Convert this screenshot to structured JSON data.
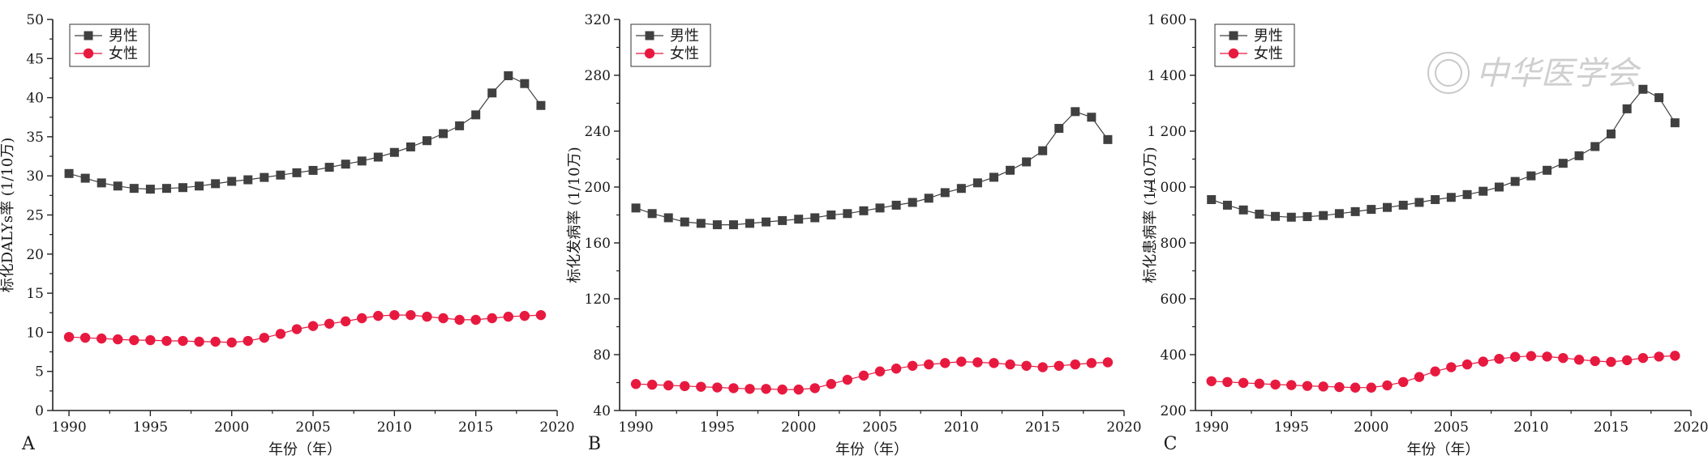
{
  "colors": {
    "male": "#404040",
    "female": "#e8193f",
    "axis": "#222222"
  },
  "watermark_text": "中华医学会",
  "chart_data": [
    {
      "panel": "A",
      "type": "line",
      "xlabel": "年份（年）",
      "ylabel": "标化DALYs率 (1/10万)",
      "xlim": [
        1989,
        2020
      ],
      "ylim": [
        0,
        50
      ],
      "xticks": [
        1990,
        1995,
        2000,
        2005,
        2010,
        2015,
        2020
      ],
      "yticks": [
        0,
        5,
        10,
        15,
        20,
        25,
        30,
        35,
        40,
        45,
        50
      ],
      "ytick_labels": [
        "0",
        "5",
        "10",
        "15",
        "20",
        "25",
        "30",
        "35",
        "40",
        "45",
        "50"
      ],
      "legend": "top-left",
      "x": [
        1990,
        1991,
        1992,
        1993,
        1994,
        1995,
        1996,
        1997,
        1998,
        1999,
        2000,
        2001,
        2002,
        2003,
        2004,
        2005,
        2006,
        2007,
        2008,
        2009,
        2010,
        2011,
        2012,
        2013,
        2014,
        2015,
        2016,
        2017,
        2018,
        2019
      ],
      "series": [
        {
          "name": "男性",
          "marker": "square",
          "values": [
            30.3,
            29.7,
            29.1,
            28.7,
            28.4,
            28.3,
            28.4,
            28.5,
            28.7,
            29.0,
            29.3,
            29.5,
            29.8,
            30.1,
            30.4,
            30.7,
            31.1,
            31.5,
            31.9,
            32.4,
            33.0,
            33.7,
            34.5,
            35.4,
            36.4,
            37.8,
            40.6,
            42.8,
            41.8,
            39.0
          ]
        },
        {
          "name": "女性",
          "marker": "circle",
          "values": [
            9.4,
            9.3,
            9.2,
            9.1,
            9.0,
            9.0,
            8.9,
            8.9,
            8.8,
            8.8,
            8.7,
            8.9,
            9.3,
            9.8,
            10.4,
            10.8,
            11.1,
            11.4,
            11.8,
            12.1,
            12.2,
            12.2,
            12.0,
            11.8,
            11.6,
            11.6,
            11.8,
            12.0,
            12.1,
            12.2
          ]
        }
      ]
    },
    {
      "panel": "B",
      "type": "line",
      "xlabel": "年份（年）",
      "ylabel": "标化发病率 (1/10万)",
      "xlim": [
        1989,
        2020
      ],
      "ylim": [
        40,
        320
      ],
      "xticks": [
        1990,
        1995,
        2000,
        2005,
        2010,
        2015,
        2020
      ],
      "yticks": [
        40,
        80,
        120,
        160,
        200,
        240,
        280,
        320
      ],
      "ytick_labels": [
        "40",
        "80",
        "120",
        "160",
        "200",
        "240",
        "280",
        "320"
      ],
      "legend": "top-left",
      "x": [
        1990,
        1991,
        1992,
        1993,
        1994,
        1995,
        1996,
        1997,
        1998,
        1999,
        2000,
        2001,
        2002,
        2003,
        2004,
        2005,
        2006,
        2007,
        2008,
        2009,
        2010,
        2011,
        2012,
        2013,
        2014,
        2015,
        2016,
        2017,
        2018,
        2019
      ],
      "series": [
        {
          "name": "男性",
          "marker": "square",
          "values": [
            185,
            181,
            178,
            175,
            174,
            173,
            173,
            174,
            175,
            176,
            177,
            178,
            180,
            181,
            183,
            185,
            187,
            189,
            192,
            196,
            199,
            203,
            207,
            212,
            218,
            226,
            242,
            254,
            250,
            234
          ]
        },
        {
          "name": "女性",
          "marker": "circle",
          "values": [
            59,
            58.5,
            58,
            57.5,
            57,
            56.5,
            56,
            55.5,
            55.5,
            55,
            55,
            56,
            59,
            62,
            65,
            68,
            70,
            72,
            73,
            74,
            75,
            74.5,
            74,
            73,
            72,
            71,
            72,
            73,
            74,
            74.5
          ]
        }
      ]
    },
    {
      "panel": "C",
      "type": "line",
      "xlabel": "年份（年）",
      "ylabel": "标化患病率 (1/10万)",
      "xlim": [
        1989,
        2020
      ],
      "ylim": [
        200,
        1600
      ],
      "xticks": [
        1990,
        1995,
        2000,
        2005,
        2010,
        2015,
        2020
      ],
      "yticks": [
        200,
        400,
        600,
        800,
        1000,
        1200,
        1400,
        1600
      ],
      "ytick_labels": [
        "200",
        "400",
        "600",
        "800",
        "1 000",
        "1 200",
        "1 400",
        "1 600"
      ],
      "legend": "top-left",
      "x": [
        1990,
        1991,
        1992,
        1993,
        1994,
        1995,
        1996,
        1997,
        1998,
        1999,
        2000,
        2001,
        2002,
        2003,
        2004,
        2005,
        2006,
        2007,
        2008,
        2009,
        2010,
        2011,
        2012,
        2013,
        2014,
        2015,
        2016,
        2017,
        2018,
        2019
      ],
      "series": [
        {
          "name": "男性",
          "marker": "square",
          "values": [
            955,
            935,
            918,
            903,
            895,
            892,
            894,
            898,
            905,
            912,
            920,
            927,
            935,
            945,
            955,
            963,
            973,
            985,
            1000,
            1020,
            1040,
            1060,
            1085,
            1112,
            1145,
            1190,
            1280,
            1350,
            1320,
            1230
          ]
        },
        {
          "name": "女性",
          "marker": "circle",
          "values": [
            305,
            302,
            299,
            296,
            293,
            291,
            288,
            286,
            284,
            282,
            282,
            290,
            302,
            320,
            340,
            355,
            365,
            375,
            385,
            392,
            395,
            393,
            388,
            382,
            377,
            374,
            380,
            388,
            393,
            396
          ]
        }
      ]
    }
  ]
}
